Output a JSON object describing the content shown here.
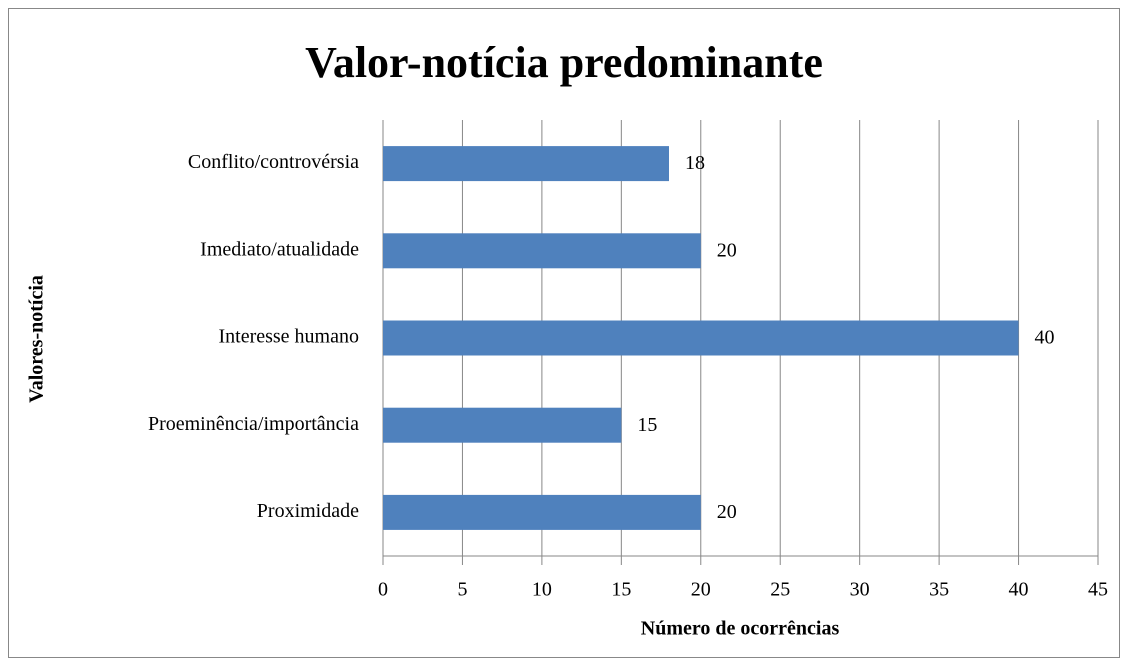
{
  "chart_data": {
    "type": "bar",
    "orientation": "horizontal",
    "title": "Valor-notícia predominante",
    "xlabel": "Número de ocorrências",
    "ylabel": "Valores-notícia",
    "categories": [
      "Conflito/controvérsia",
      "Imediato/atualidade",
      "Interesse humano",
      "Proeminência/importância",
      "Proximidade"
    ],
    "values": [
      18,
      20,
      40,
      15,
      20
    ],
    "color": "#4f81bd",
    "xlim": [
      0,
      45
    ],
    "xticks": [
      0,
      5,
      10,
      15,
      20,
      25,
      30,
      35,
      40,
      45
    ],
    "grid": true
  }
}
